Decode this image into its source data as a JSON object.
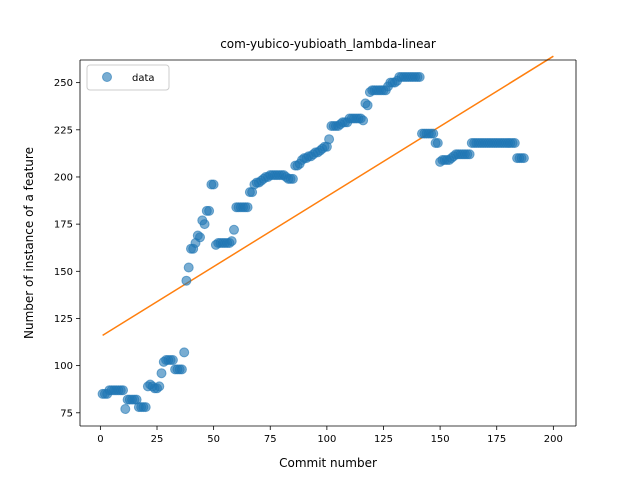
{
  "chart_data": {
    "type": "scatter",
    "title": "com-yubico-yubioath_lambda-linear",
    "xlabel": "Commit number",
    "ylabel": "Number of instance of a feature",
    "xlim": [
      -9,
      210
    ],
    "ylim": [
      68,
      262
    ],
    "xticks": [
      0,
      25,
      50,
      75,
      100,
      125,
      150,
      175,
      200
    ],
    "yticks": [
      75,
      100,
      125,
      150,
      175,
      200,
      225,
      250
    ],
    "grid": false,
    "legend_position": "top-left",
    "colors": {
      "data": "#1f77b4",
      "fit": "#ff7f0e"
    },
    "series": [
      {
        "name": "data",
        "kind": "scatter",
        "points": [
          [
            1,
            85
          ],
          [
            2,
            85
          ],
          [
            3,
            85
          ],
          [
            4,
            87
          ],
          [
            5,
            87
          ],
          [
            6,
            87
          ],
          [
            7,
            87
          ],
          [
            8,
            87
          ],
          [
            9,
            87
          ],
          [
            10,
            87
          ],
          [
            11,
            77
          ],
          [
            12,
            82
          ],
          [
            13,
            82
          ],
          [
            14,
            82
          ],
          [
            15,
            82
          ],
          [
            16,
            82
          ],
          [
            17,
            78
          ],
          [
            18,
            78
          ],
          [
            19,
            78
          ],
          [
            20,
            78
          ],
          [
            21,
            89
          ],
          [
            22,
            90
          ],
          [
            23,
            89
          ],
          [
            24,
            88
          ],
          [
            25,
            88
          ],
          [
            26,
            89
          ],
          [
            27,
            96
          ],
          [
            28,
            102
          ],
          [
            29,
            103
          ],
          [
            30,
            103
          ],
          [
            31,
            103
          ],
          [
            32,
            103
          ],
          [
            33,
            98
          ],
          [
            34,
            98
          ],
          [
            35,
            98
          ],
          [
            36,
            98
          ],
          [
            37,
            107
          ],
          [
            38,
            145
          ],
          [
            39,
            152
          ],
          [
            40,
            162
          ],
          [
            41,
            162
          ],
          [
            42,
            165
          ],
          [
            43,
            169
          ],
          [
            44,
            168
          ],
          [
            45,
            177
          ],
          [
            46,
            175
          ],
          [
            47,
            182
          ],
          [
            48,
            182
          ],
          [
            49,
            196
          ],
          [
            50,
            196
          ],
          [
            51,
            164
          ],
          [
            52,
            165
          ],
          [
            53,
            165
          ],
          [
            54,
            165
          ],
          [
            55,
            165
          ],
          [
            56,
            165
          ],
          [
            57,
            165
          ],
          [
            58,
            166
          ],
          [
            59,
            172
          ],
          [
            60,
            184
          ],
          [
            61,
            184
          ],
          [
            62,
            184
          ],
          [
            63,
            184
          ],
          [
            64,
            184
          ],
          [
            65,
            184
          ],
          [
            66,
            192
          ],
          [
            67,
            192
          ],
          [
            68,
            196
          ],
          [
            69,
            197
          ],
          [
            70,
            197
          ],
          [
            71,
            198
          ],
          [
            72,
            199
          ],
          [
            73,
            200
          ],
          [
            74,
            200
          ],
          [
            75,
            201
          ],
          [
            76,
            201
          ],
          [
            77,
            201
          ],
          [
            78,
            201
          ],
          [
            79,
            201
          ],
          [
            80,
            201
          ],
          [
            81,
            201
          ],
          [
            82,
            200
          ],
          [
            83,
            199
          ],
          [
            84,
            199
          ],
          [
            85,
            199
          ],
          [
            86,
            206
          ],
          [
            87,
            206
          ],
          [
            88,
            207
          ],
          [
            89,
            209
          ],
          [
            90,
            210
          ],
          [
            91,
            210
          ],
          [
            92,
            211
          ],
          [
            93,
            211
          ],
          [
            94,
            212
          ],
          [
            95,
            213
          ],
          [
            96,
            213
          ],
          [
            97,
            214
          ],
          [
            98,
            215
          ],
          [
            99,
            216
          ],
          [
            100,
            216
          ],
          [
            101,
            220
          ],
          [
            102,
            227
          ],
          [
            103,
            227
          ],
          [
            104,
            227
          ],
          [
            105,
            227
          ],
          [
            106,
            228
          ],
          [
            107,
            229
          ],
          [
            108,
            229
          ],
          [
            109,
            229
          ],
          [
            110,
            231
          ],
          [
            111,
            231
          ],
          [
            112,
            231
          ],
          [
            113,
            231
          ],
          [
            114,
            231
          ],
          [
            115,
            231
          ],
          [
            116,
            230
          ],
          [
            117,
            239
          ],
          [
            118,
            238
          ],
          [
            119,
            245
          ],
          [
            120,
            246
          ],
          [
            121,
            246
          ],
          [
            122,
            246
          ],
          [
            123,
            246
          ],
          [
            124,
            246
          ],
          [
            125,
            246
          ],
          [
            126,
            246
          ],
          [
            127,
            248
          ],
          [
            128,
            250
          ],
          [
            129,
            250
          ],
          [
            130,
            250
          ],
          [
            131,
            251
          ],
          [
            132,
            253
          ],
          [
            133,
            253
          ],
          [
            134,
            253
          ],
          [
            135,
            253
          ],
          [
            136,
            253
          ],
          [
            137,
            253
          ],
          [
            138,
            253
          ],
          [
            139,
            253
          ],
          [
            140,
            253
          ],
          [
            141,
            253
          ],
          [
            142,
            223
          ],
          [
            143,
            223
          ],
          [
            144,
            223
          ],
          [
            145,
            223
          ],
          [
            146,
            223
          ],
          [
            147,
            223
          ],
          [
            148,
            218
          ],
          [
            149,
            218
          ],
          [
            150,
            208
          ],
          [
            151,
            209
          ],
          [
            152,
            209
          ],
          [
            153,
            209
          ],
          [
            154,
            209
          ],
          [
            155,
            210
          ],
          [
            156,
            211
          ],
          [
            157,
            212
          ],
          [
            158,
            212
          ],
          [
            159,
            212
          ],
          [
            160,
            212
          ],
          [
            161,
            212
          ],
          [
            162,
            212
          ],
          [
            163,
            212
          ],
          [
            164,
            218
          ],
          [
            165,
            218
          ],
          [
            166,
            218
          ],
          [
            167,
            218
          ],
          [
            168,
            218
          ],
          [
            169,
            218
          ],
          [
            170,
            218
          ],
          [
            171,
            218
          ],
          [
            172,
            218
          ],
          [
            173,
            218
          ],
          [
            174,
            218
          ],
          [
            175,
            218
          ],
          [
            176,
            218
          ],
          [
            177,
            218
          ],
          [
            178,
            218
          ],
          [
            179,
            218
          ],
          [
            180,
            218
          ],
          [
            181,
            218
          ],
          [
            182,
            218
          ],
          [
            183,
            218
          ],
          [
            184,
            210
          ],
          [
            185,
            210
          ],
          [
            186,
            210
          ],
          [
            187,
            210
          ]
        ]
      },
      {
        "kind": "line",
        "points": [
          [
            1,
            116
          ],
          [
            200,
            264
          ]
        ]
      }
    ]
  }
}
